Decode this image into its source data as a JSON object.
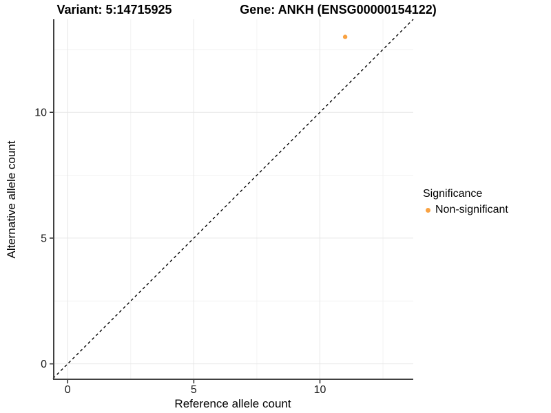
{
  "titles": {
    "variant": "Variant: 5:14715925",
    "gene": "Gene: ANKH (ENSG00000154122)"
  },
  "chart_data": {
    "type": "scatter",
    "xlabel": "Reference allele count",
    "ylabel": "Alternative allele count",
    "xlim": [
      -0.58,
      13.7
    ],
    "ylim": [
      -0.64,
      13.7
    ],
    "xticks": [
      0,
      5,
      10
    ],
    "yticks": [
      0,
      5,
      10
    ],
    "xminor": [
      2.5,
      7.5,
      12.5
    ],
    "yminor": [
      2.5,
      7.5,
      12.5
    ],
    "grid": true,
    "identity_line": {
      "style": "dashed",
      "color": "#000000"
    },
    "series": [
      {
        "name": "Non-significant",
        "color": "#F9A242",
        "points": [
          {
            "x": 11,
            "y": 13
          }
        ]
      }
    ],
    "legend": {
      "title": "Significance",
      "position": "right",
      "items": [
        {
          "label": "Non-significant",
          "color": "#F9A242"
        }
      ]
    }
  },
  "style": {
    "background": "#ffffff",
    "grid_major": "#e6e6e6",
    "grid_minor": "#f2f2f2",
    "axis_line": "#404040",
    "tick_mark": "#333333",
    "tick_label_color": "#1a1a1a"
  }
}
